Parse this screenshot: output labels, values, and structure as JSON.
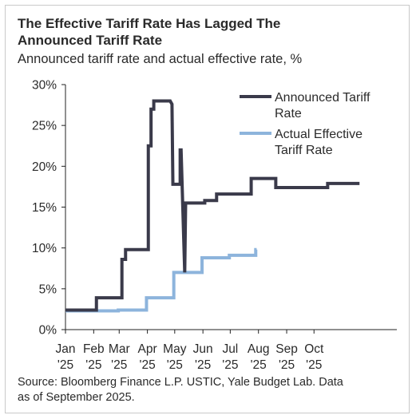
{
  "header": {
    "title_line1": "The Effective Tariff Rate Has Lagged The",
    "title_line2": "Announced Tariff Rate",
    "subtitle": "Announced tariff rate and actual effective rate, %"
  },
  "footer": {
    "source_line1": "Source: Bloomberg Finance L.P. USTIC, Yale Budget Lab. Data",
    "source_line2": "as of September 2025."
  },
  "colors": {
    "announced": "#3a3a4a",
    "effective": "#8db4dc",
    "axis": "#222222"
  },
  "chart_data": {
    "type": "line",
    "title": "The Effective Tariff Rate Has Lagged The Announced Tariff Rate",
    "subtitle": "Announced tariff rate and actual effective rate, %",
    "xlabel": "",
    "ylabel": "",
    "ylim": [
      0,
      30
    ],
    "yticks": [
      0,
      5,
      10,
      15,
      20,
      25,
      30
    ],
    "ytick_labels": [
      "0%",
      "5%",
      "10%",
      "15%",
      "20%",
      "25%",
      "30%"
    ],
    "xlim": [
      "2025-01-01",
      "2025-12-31"
    ],
    "xticks": [
      {
        "date": "2025-01-01",
        "l1": "Jan",
        "l2": "'25"
      },
      {
        "date": "2025-02-01",
        "l1": "Feb",
        "l2": "'25"
      },
      {
        "date": "2025-03-01",
        "l1": "Mar",
        "l2": "'25"
      },
      {
        "date": "2025-04-01",
        "l1": "Apr",
        "l2": "'25"
      },
      {
        "date": "2025-05-01",
        "l1": "May",
        "l2": "'25"
      },
      {
        "date": "2025-06-01",
        "l1": "Jun",
        "l2": "'25"
      },
      {
        "date": "2025-07-01",
        "l1": "Jul",
        "l2": "'25"
      },
      {
        "date": "2025-08-01",
        "l1": "Aug",
        "l2": "'25"
      },
      {
        "date": "2025-09-01",
        "l1": "Sep",
        "l2": "'25"
      },
      {
        "date": "2025-10-01",
        "l1": "Oct",
        "l2": "'25"
      }
    ],
    "grid": false,
    "legend_position": "top-right",
    "series": [
      {
        "name": "Announced Tariff Rate",
        "points": [
          [
            "2025-01-01",
            2.4
          ],
          [
            "2025-02-04",
            2.4
          ],
          [
            "2025-02-04",
            3.9
          ],
          [
            "2025-03-04",
            3.9
          ],
          [
            "2025-03-04",
            8.6
          ],
          [
            "2025-03-08",
            8.6
          ],
          [
            "2025-03-08",
            9.8
          ],
          [
            "2025-04-02",
            9.8
          ],
          [
            "2025-04-02",
            22.5
          ],
          [
            "2025-04-05",
            22.5
          ],
          [
            "2025-04-05",
            27.0
          ],
          [
            "2025-04-08",
            27.0
          ],
          [
            "2025-04-08",
            28.0
          ],
          [
            "2025-04-26",
            28.0
          ],
          [
            "2025-04-28",
            27.6
          ],
          [
            "2025-04-29",
            17.8
          ],
          [
            "2025-05-07",
            17.8
          ],
          [
            "2025-05-07",
            22.0
          ],
          [
            "2025-05-08",
            22.0
          ],
          [
            "2025-05-12",
            7.0
          ],
          [
            "2025-05-13",
            15.5
          ],
          [
            "2025-06-03",
            15.5
          ],
          [
            "2025-06-03",
            15.8
          ],
          [
            "2025-06-16",
            15.8
          ],
          [
            "2025-06-16",
            16.6
          ],
          [
            "2025-07-24",
            16.6
          ],
          [
            "2025-07-24",
            18.5
          ],
          [
            "2025-08-20",
            18.5
          ],
          [
            "2025-08-20",
            17.4
          ],
          [
            "2025-10-16",
            17.4
          ],
          [
            "2025-10-16",
            17.9
          ],
          [
            "2025-11-20",
            17.9
          ]
        ]
      },
      {
        "name": "Actual Effective Tariff Rate",
        "points": [
          [
            "2025-01-01",
            2.3
          ],
          [
            "2025-02-28",
            2.3
          ],
          [
            "2025-02-28",
            2.4
          ],
          [
            "2025-03-31",
            2.4
          ],
          [
            "2025-03-31",
            3.9
          ],
          [
            "2025-04-30",
            3.9
          ],
          [
            "2025-04-30",
            7.0
          ],
          [
            "2025-05-31",
            7.0
          ],
          [
            "2025-05-31",
            8.8
          ],
          [
            "2025-06-30",
            8.8
          ],
          [
            "2025-06-30",
            9.1
          ],
          [
            "2025-07-29",
            9.1
          ],
          [
            "2025-07-29",
            9.8
          ],
          [
            "2025-07-30",
            9.8
          ]
        ]
      }
    ],
    "legend": [
      "Announced Tariff Rate",
      "Actual Effective Tariff Rate"
    ]
  }
}
